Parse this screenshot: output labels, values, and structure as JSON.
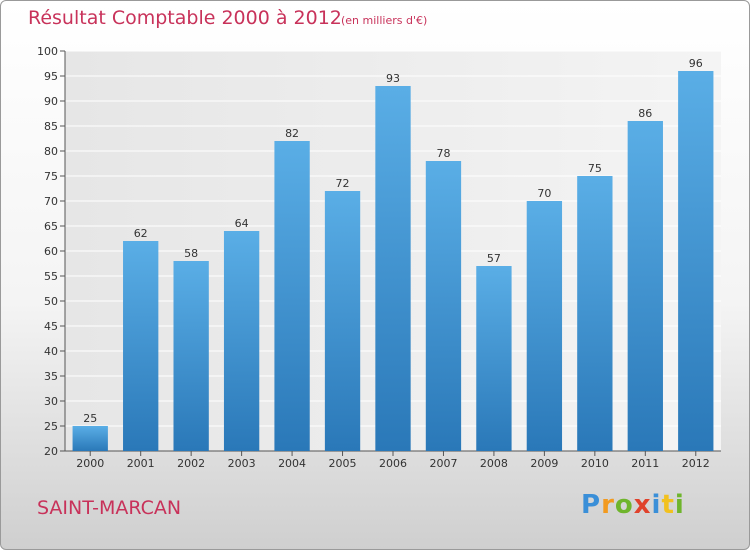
{
  "header": {
    "title": "Résultat Comptable 2000 à 2012",
    "subtitle": "(en milliers d'€)"
  },
  "footer": {
    "town": "SAINT-MARCAN",
    "logo_letters": [
      {
        "char": "P",
        "color": "#3a8fd8"
      },
      {
        "char": "r",
        "color": "#f29a1f"
      },
      {
        "char": "o",
        "color": "#6fb52c"
      },
      {
        "char": "x",
        "color": "#e0422c"
      },
      {
        "char": "i",
        "color": "#3a8fd8"
      },
      {
        "char": "t",
        "color": "#f2c11f"
      },
      {
        "char": "i",
        "color": "#6fb52c"
      }
    ]
  },
  "chart_data": {
    "type": "bar",
    "title": "Résultat Comptable 2000 à 2012",
    "subtitle": "(en milliers d'€)",
    "categories": [
      "2000",
      "2001",
      "2002",
      "2003",
      "2004",
      "2005",
      "2006",
      "2007",
      "2008",
      "2009",
      "2010",
      "2011",
      "2012"
    ],
    "values": [
      25,
      62,
      58,
      64,
      82,
      72,
      93,
      78,
      57,
      70,
      75,
      86,
      96
    ],
    "ylim": [
      20,
      100
    ],
    "yticks": [
      20,
      25,
      30,
      35,
      40,
      45,
      50,
      55,
      60,
      65,
      70,
      75,
      80,
      85,
      90,
      95,
      100
    ],
    "grid": true,
    "bar_color": "#4a9fdc",
    "bar_color_dark": "#2a78b8",
    "xlabel": "",
    "ylabel": ""
  }
}
